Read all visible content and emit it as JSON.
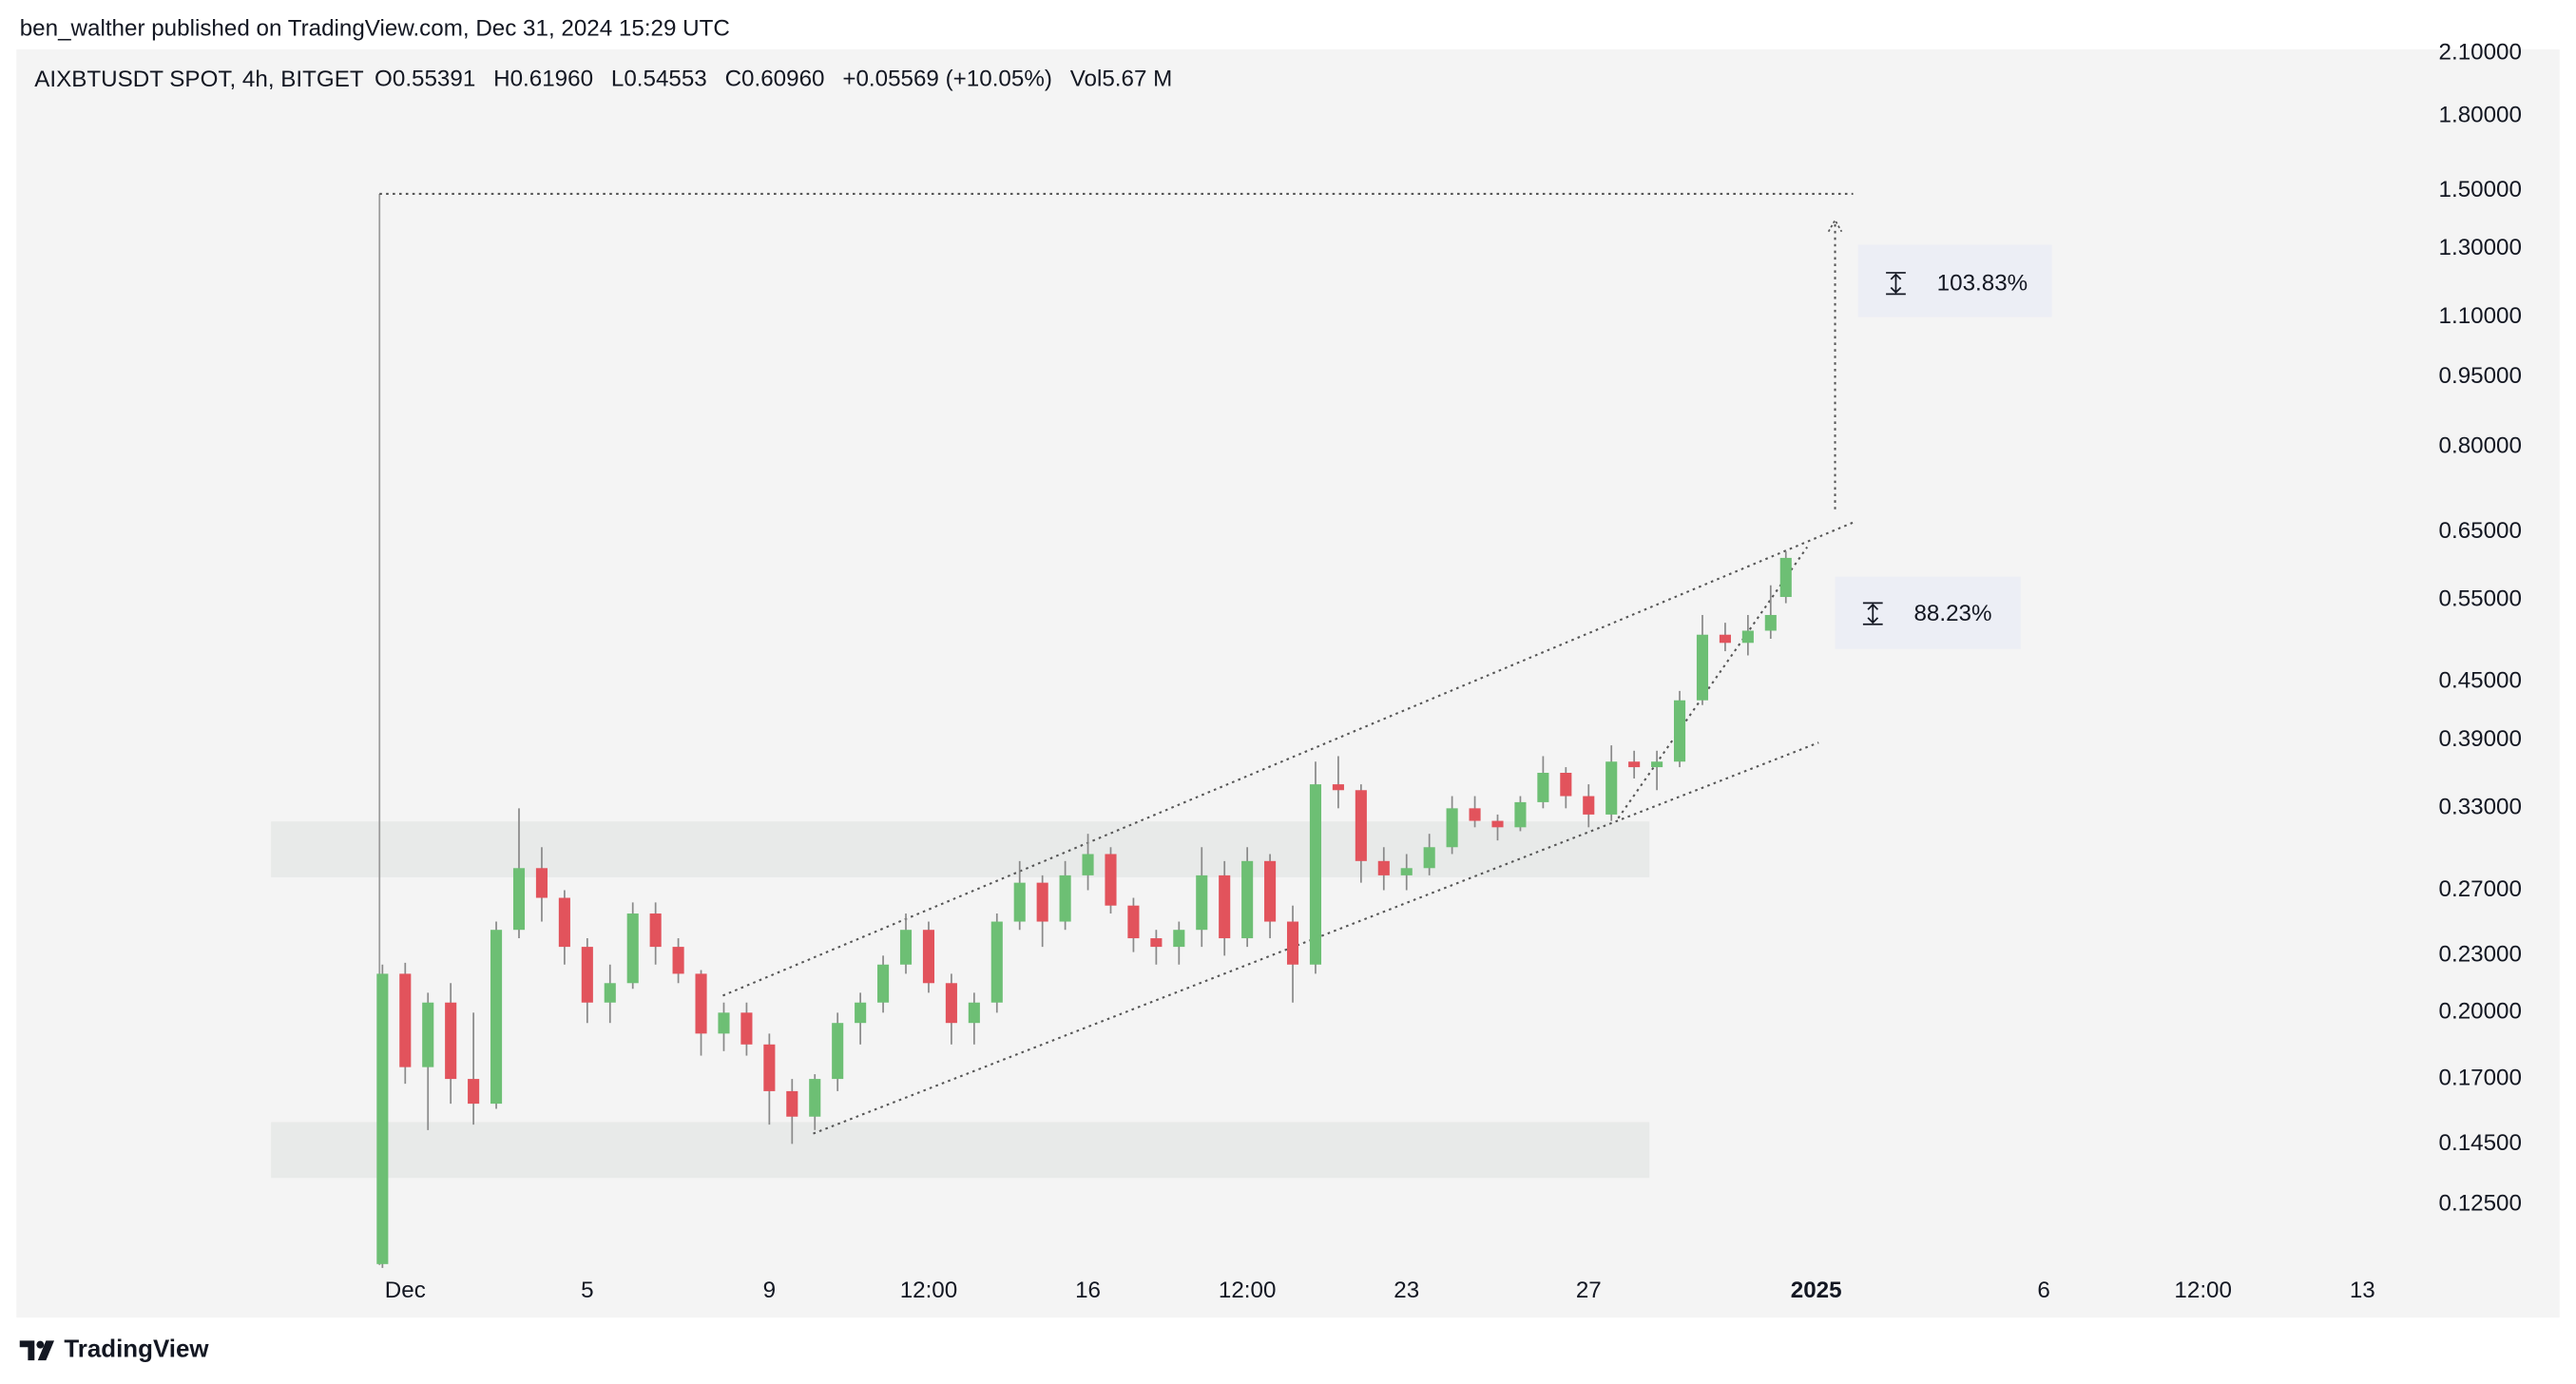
{
  "publisher": "ben_walther published on TradingView.com, Dec 31, 2024 15:29 UTC",
  "footer": "TradingView",
  "chart_data": {
    "type": "candlestick",
    "title": "AIXBTUSDT SPOT, 4h, BITGET",
    "legend_values": [
      "O0.55391",
      "H0.61960",
      "L0.54553",
      "C0.60960",
      "+0.05569 (+10.05%)",
      "Vol5.67 M"
    ],
    "annotations": [
      "103.83%",
      "88.23%"
    ],
    "up_color": "#6dbf74",
    "down_color": "#e2535c",
    "log_scale": true,
    "ylim": [
      0.1056,
      2.12
    ],
    "yticks": [
      {
        "value": 2.1,
        "label": "2.10000"
      },
      {
        "value": 1.8,
        "label": "1.80000"
      },
      {
        "value": 1.5,
        "label": "1.50000"
      },
      {
        "value": 1.3,
        "label": "1.30000"
      },
      {
        "value": 1.1,
        "label": "1.10000"
      },
      {
        "value": 0.95,
        "label": "0.95000"
      },
      {
        "value": 0.8,
        "label": "0.80000"
      },
      {
        "value": 0.65,
        "label": "0.65000"
      },
      {
        "value": 0.55,
        "label": "0.55000"
      },
      {
        "value": 0.45,
        "label": "0.45000"
      },
      {
        "value": 0.39,
        "label": "0.39000"
      },
      {
        "value": 0.33,
        "label": "0.33000"
      },
      {
        "value": 0.27,
        "label": "0.27000"
      },
      {
        "value": 0.23,
        "label": "0.23000"
      },
      {
        "value": 0.2,
        "label": "0.20000"
      },
      {
        "value": 0.17,
        "label": "0.17000"
      },
      {
        "value": 0.145,
        "label": "0.14500"
      },
      {
        "value": 0.125,
        "label": "0.12500"
      }
    ],
    "xlim": [
      "2024-11-22T11:00",
      "2025-01-14T02:00"
    ],
    "xticks": [
      {
        "value": "2024-12-01T00:00",
        "label": "Dec"
      },
      {
        "value": "2024-12-05T00:00",
        "label": "5"
      },
      {
        "value": "2024-12-09T00:00",
        "label": "9"
      },
      {
        "value": "2024-12-12T12:00",
        "label": "12:00"
      },
      {
        "value": "2024-12-16T00:00",
        "label": "16"
      },
      {
        "value": "2024-12-19T12:00",
        "label": "12:00"
      },
      {
        "value": "2024-12-23T00:00",
        "label": "23"
      },
      {
        "value": "2024-12-27T00:00",
        "label": "27"
      },
      {
        "value": "2025-01-01T00:00",
        "label": "2025"
      },
      {
        "value": "2025-01-06T00:00",
        "label": "6"
      },
      {
        "value": "2025-01-09T12:00",
        "label": "12:00"
      },
      {
        "value": "2025-01-13T00:00",
        "label": "13"
      }
    ],
    "x": [
      "2024-11-30T12:00",
      "2024-12-01T00:00",
      "2024-12-01T12:00",
      "2024-12-02T00:00",
      "2024-12-02T12:00",
      "2024-12-03T00:00",
      "2024-12-03T12:00",
      "2024-12-04T00:00",
      "2024-12-04T12:00",
      "2024-12-05T00:00",
      "2024-12-05T12:00",
      "2024-12-06T00:00",
      "2024-12-06T12:00",
      "2024-12-07T00:00",
      "2024-12-07T12:00",
      "2024-12-08T00:00",
      "2024-12-08T12:00",
      "2024-12-09T00:00",
      "2024-12-09T12:00",
      "2024-12-10T00:00",
      "2024-12-10T12:00",
      "2024-12-11T00:00",
      "2024-12-11T12:00",
      "2024-12-12T00:00",
      "2024-12-12T12:00",
      "2024-12-13T00:00",
      "2024-12-13T12:00",
      "2024-12-14T00:00",
      "2024-12-14T12:00",
      "2024-12-15T00:00",
      "2024-12-15T12:00",
      "2024-12-16T00:00",
      "2024-12-16T12:00",
      "2024-12-17T00:00",
      "2024-12-17T12:00",
      "2024-12-18T00:00",
      "2024-12-18T12:00",
      "2024-12-19T00:00",
      "2024-12-19T12:00",
      "2024-12-20T00:00",
      "2024-12-20T12:00",
      "2024-12-21T00:00",
      "2024-12-21T12:00",
      "2024-12-22T00:00",
      "2024-12-22T12:00",
      "2024-12-23T00:00",
      "2024-12-23T12:00",
      "2024-12-24T00:00",
      "2024-12-24T12:00",
      "2024-12-25T00:00",
      "2024-12-25T12:00",
      "2024-12-26T00:00",
      "2024-12-26T12:00",
      "2024-12-27T00:00",
      "2024-12-27T12:00",
      "2024-12-28T00:00",
      "2024-12-28T12:00",
      "2024-12-29T00:00",
      "2024-12-29T12:00",
      "2024-12-30T00:00",
      "2024-12-30T12:00",
      "2024-12-31T00:00",
      "2024-12-31T08:00"
    ],
    "open": [
      0.108,
      0.22,
      0.175,
      0.205,
      0.17,
      0.16,
      0.245,
      0.285,
      0.265,
      0.235,
      0.205,
      0.215,
      0.255,
      0.235,
      0.22,
      0.19,
      0.2,
      0.185,
      0.165,
      0.155,
      0.17,
      0.195,
      0.205,
      0.225,
      0.245,
      0.215,
      0.195,
      0.205,
      0.25,
      0.275,
      0.25,
      0.28,
      0.295,
      0.26,
      0.24,
      0.235,
      0.245,
      0.28,
      0.24,
      0.29,
      0.25,
      0.225,
      0.35,
      0.345,
      0.29,
      0.28,
      0.285,
      0.3,
      0.33,
      0.32,
      0.315,
      0.335,
      0.36,
      0.34,
      0.325,
      0.37,
      0.365,
      0.37,
      0.43,
      0.505,
      0.495,
      0.51,
      0.55391
    ],
    "high": [
      0.225,
      0.226,
      0.21,
      0.215,
      0.2,
      0.25,
      0.33,
      0.3,
      0.27,
      0.24,
      0.225,
      0.262,
      0.262,
      0.24,
      0.222,
      0.205,
      0.205,
      0.19,
      0.17,
      0.172,
      0.2,
      0.21,
      0.23,
      0.255,
      0.25,
      0.22,
      0.21,
      0.255,
      0.29,
      0.28,
      0.29,
      0.31,
      0.3,
      0.265,
      0.245,
      0.25,
      0.3,
      0.29,
      0.3,
      0.295,
      0.26,
      0.37,
      0.375,
      0.35,
      0.3,
      0.295,
      0.31,
      0.34,
      0.34,
      0.325,
      0.34,
      0.375,
      0.365,
      0.35,
      0.385,
      0.38,
      0.38,
      0.44,
      0.53,
      0.52,
      0.53,
      0.57,
      0.6196
    ],
    "low": [
      0.107,
      0.168,
      0.15,
      0.16,
      0.152,
      0.158,
      0.24,
      0.25,
      0.225,
      0.195,
      0.195,
      0.212,
      0.225,
      0.215,
      0.18,
      0.182,
      0.18,
      0.152,
      0.145,
      0.15,
      0.165,
      0.185,
      0.2,
      0.22,
      0.21,
      0.185,
      0.185,
      0.2,
      0.245,
      0.235,
      0.245,
      0.27,
      0.255,
      0.232,
      0.225,
      0.225,
      0.235,
      0.23,
      0.235,
      0.24,
      0.205,
      0.22,
      0.33,
      0.275,
      0.27,
      0.27,
      0.28,
      0.295,
      0.315,
      0.305,
      0.312,
      0.33,
      0.33,
      0.315,
      0.32,
      0.355,
      0.345,
      0.365,
      0.425,
      0.485,
      0.48,
      0.5,
      0.54553
    ],
    "close": [
      0.22,
      0.175,
      0.205,
      0.17,
      0.16,
      0.245,
      0.285,
      0.265,
      0.235,
      0.205,
      0.215,
      0.255,
      0.235,
      0.22,
      0.19,
      0.2,
      0.185,
      0.165,
      0.155,
      0.17,
      0.195,
      0.205,
      0.225,
      0.245,
      0.215,
      0.195,
      0.205,
      0.25,
      0.275,
      0.25,
      0.28,
      0.295,
      0.26,
      0.24,
      0.235,
      0.245,
      0.28,
      0.24,
      0.29,
      0.25,
      0.225,
      0.35,
      0.345,
      0.29,
      0.28,
      0.285,
      0.3,
      0.33,
      0.32,
      0.315,
      0.335,
      0.36,
      0.34,
      0.325,
      0.37,
      0.365,
      0.37,
      0.43,
      0.505,
      0.495,
      0.51,
      0.53,
      0.6096
    ]
  }
}
